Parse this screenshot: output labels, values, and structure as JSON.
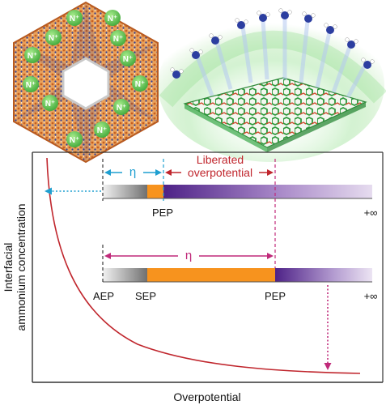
{
  "colors": {
    "curve": "#c0262d",
    "cyan": "#1f9fd0",
    "magenta": "#c02a7a",
    "red_label": "#c0262d",
    "orange": "#f7931e",
    "purple_dark": "#5a2a8c",
    "purple_light": "#ddd0ea",
    "gray_dark": "#7a7a7a",
    "gray_light": "#e0e0e0",
    "crystal_orange": "#d9742e",
    "crystal_blue": "#2c3e9a",
    "crystal_green": "#5ec64a",
    "graphene_green": "#3ba84a",
    "graphene_red": "#d24a2e"
  },
  "illustrations": {
    "crystal_badge_label": "N⁺",
    "left_image": "porous-hexagonal-framework-illustration",
    "right_image": "ammonium-ions-over-graphene-sheet-illustration"
  },
  "chart": {
    "xlabel": "Overpotential",
    "ylabel_line1": "Interfacial",
    "ylabel_line2": "ammonium concentration"
  },
  "upper_bar": {
    "eta": "η",
    "liberated_line1": "Liberated",
    "liberated_line2": "overpotential",
    "pep": "PEP",
    "infinity": "+∞"
  },
  "lower_bar": {
    "eta": "η",
    "aep": "AEP",
    "sep": "SEP",
    "pep": "PEP",
    "infinity": "+∞"
  }
}
